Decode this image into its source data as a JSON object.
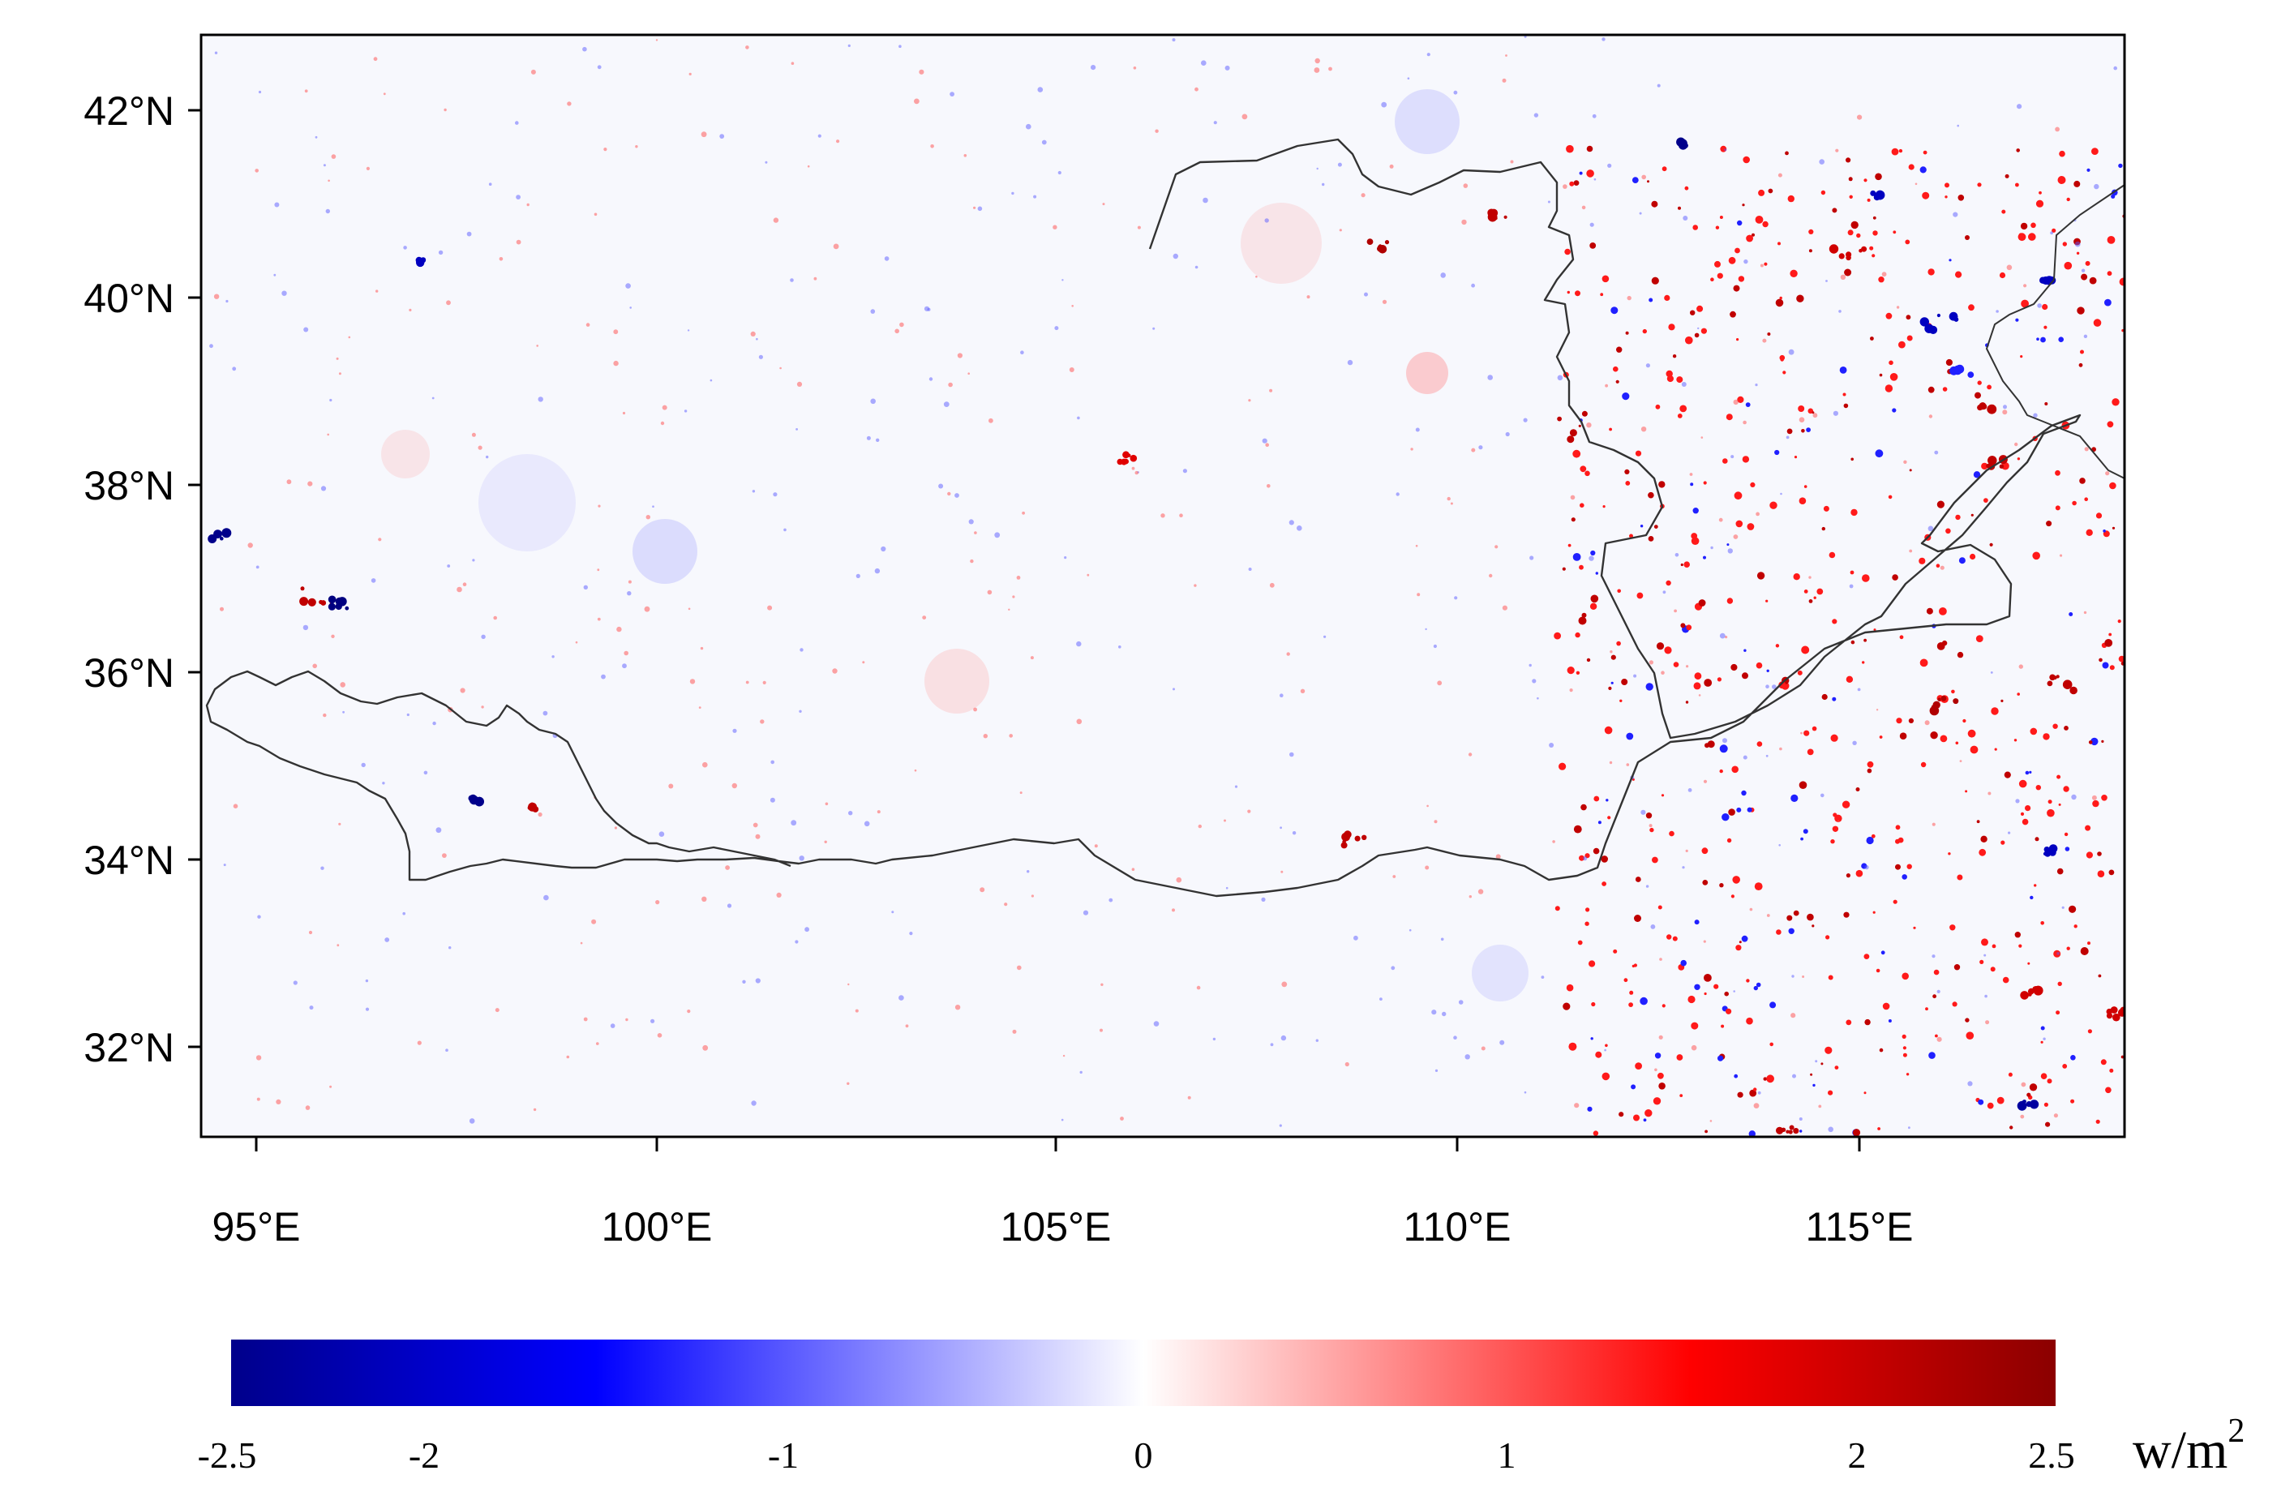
{
  "map": {
    "lat_ticks": [
      "42°N",
      "40°N",
      "38°N",
      "36°N",
      "34°N",
      "32°N"
    ],
    "lon_ticks": [
      "95°E",
      "100°E",
      "105°E",
      "110°E",
      "115°E"
    ],
    "extent": {
      "lon": [
        94.3,
        118.2
      ],
      "lat": [
        31.0,
        42.8
      ]
    },
    "colors": {
      "negative_max": "#00008b",
      "negative": "#0000ff",
      "neutral": "#ffffff",
      "positive": "#ff0000",
      "positive_max": "#8b0000"
    }
  },
  "colorbar": {
    "range": [
      -2.5,
      2.5
    ],
    "tick_labels": [
      "-2.5",
      "-2",
      "-1",
      "0",
      "1",
      "2",
      "2.5"
    ],
    "tick_values": [
      -2.5,
      -2,
      -1,
      0,
      1,
      2,
      2.5
    ],
    "unit_base": "w/m",
    "unit_exp": "2"
  }
}
